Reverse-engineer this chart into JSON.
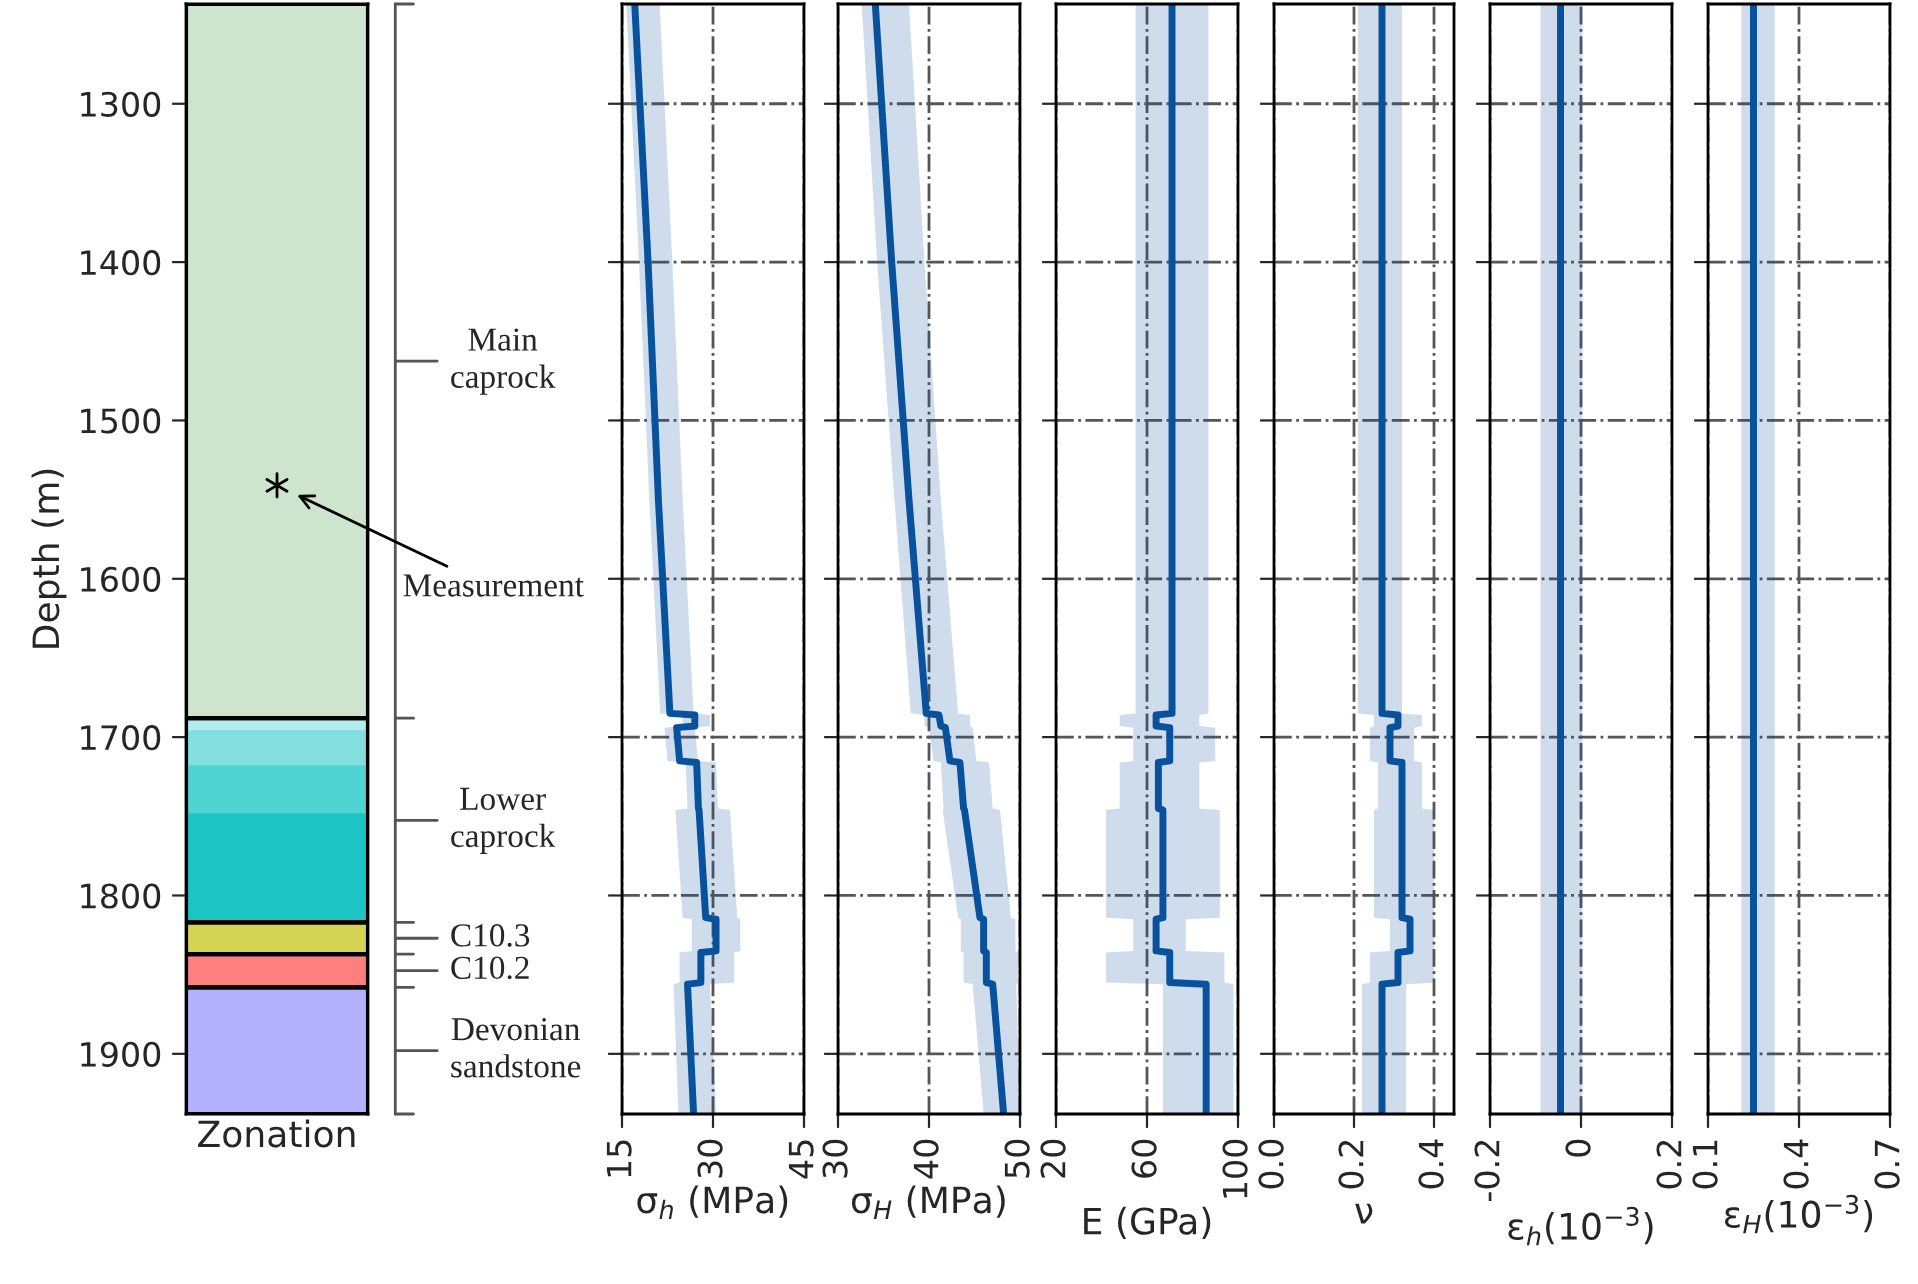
{
  "chart_data": [
    {
      "type": "scatter",
      "categories": [
        null
      ],
      "marker": "cross",
      "series": [
        {
          "color": "#000000",
          "values": [
            1541
          ]
        }
      ],
      "xlabel": "Zonation",
      "ylabel": "Depth (m)",
      "ylim": [
        1938,
        1237
      ],
      "yticks": [
        1300,
        1400,
        1500,
        1600,
        1700,
        1800,
        1900
      ],
      "tick_labels": "y",
      "bands": [
        {
          "axis": "y",
          "from": 1237,
          "to": 1688,
          "color": "#cce5cc",
          "label": "Main\ncaprock"
        },
        {
          "axis": "y",
          "from": 1688,
          "to": 1817,
          "color": "#1cc4c4",
          "label": "Lower\ncaprock"
        },
        {
          "axis": "y",
          "from": 1688,
          "to": 1696,
          "color": "#b3eded"
        },
        {
          "axis": "y",
          "from": 1696,
          "to": 1718,
          "color": "#83dfdf"
        },
        {
          "axis": "y",
          "from": 1718,
          "to": 1748,
          "color": "#4fd3d3"
        },
        {
          "axis": "y",
          "from": 1817,
          "to": 1837,
          "color": "#d4d452",
          "label": "C10.3"
        },
        {
          "axis": "y",
          "from": 1837,
          "to": 1858,
          "color": "#ff7f7f",
          "label": "C10.2"
        },
        {
          "axis": "y",
          "from": 1858,
          "to": 1938,
          "color": "#b2b2ff",
          "label": "Devonian\nsandstone"
        }
      ],
      "annotations": [
        "Measurement"
      ]
    },
    {
      "type": "line",
      "orientation": "horizontal",
      "x": [
        1237,
        1400,
        1550,
        1685,
        1686,
        1693,
        1694,
        1715,
        1716,
        1745,
        1746,
        1814,
        1815,
        1835,
        1836,
        1855,
        1856,
        1938
      ],
      "xlabel": "σ$_{h}$ (MPa)",
      "xlim": [
        15,
        45
      ],
      "xticks": [
        15,
        30,
        45
      ],
      "ylim": [
        1938,
        1237
      ],
      "yticks": [
        1300,
        1400,
        1500,
        1600,
        1700,
        1800,
        1900
      ],
      "grid": true,
      "tick_labels": "x",
      "series": [
        {
          "color": "#08519c",
          "values": [
            17.1,
            19.3,
            21.0,
            22.9,
            27.0,
            27.0,
            24.0,
            24.5,
            27.3,
            27.6,
            27.7,
            28.8,
            30.5,
            30.5,
            28.0,
            28.0,
            25.8,
            26.8
          ],
          "lower": [
            15.7,
            17.8,
            19.5,
            21.3,
            25.0,
            25.0,
            22.0,
            22.5,
            25.5,
            25.8,
            23.8,
            25.0,
            26.5,
            26.5,
            24.5,
            24.5,
            23.5,
            24.3
          ],
          "upper": [
            21.2,
            23.3,
            25.0,
            26.8,
            29.5,
            29.5,
            27.0,
            27.5,
            30.5,
            30.8,
            32.8,
            34.0,
            34.5,
            34.5,
            33.5,
            33.5,
            29.5,
            30.5
          ]
        }
      ]
    },
    {
      "type": "line",
      "orientation": "horizontal",
      "x": [
        1237,
        1400,
        1550,
        1685,
        1686,
        1693,
        1694,
        1715,
        1716,
        1745,
        1746,
        1814,
        1815,
        1835,
        1836,
        1855,
        1856,
        1938
      ],
      "xlabel": "σ$_{H}$ (MPa)",
      "xlim": [
        30,
        50
      ],
      "xticks": [
        30,
        40,
        50
      ],
      "ylim": [
        1938,
        1237
      ],
      "yticks": [
        1300,
        1400,
        1500,
        1600,
        1700,
        1800,
        1900
      ],
      "grid": true,
      "tick_labels": "x",
      "series": [
        {
          "color": "#08519c",
          "values": [
            34.1,
            35.9,
            37.8,
            39.7,
            41.1,
            41.3,
            41.8,
            42.3,
            43.4,
            43.8,
            43.9,
            45.6,
            46.0,
            46.0,
            46.3,
            46.3,
            47.0,
            48.2
          ],
          "lower": [
            32.6,
            34.3,
            36.2,
            38.0,
            39.5,
            39.5,
            40.0,
            40.5,
            41.3,
            41.6,
            41.5,
            43.2,
            43.5,
            43.5,
            43.8,
            43.8,
            44.8,
            46.0
          ],
          "upper": [
            37.8,
            39.5,
            41.3,
            43.2,
            44.5,
            44.5,
            44.8,
            45.2,
            46.6,
            47.0,
            47.8,
            49.0,
            49.5,
            49.5,
            49.8,
            49.8,
            49.6,
            50.0
          ]
        }
      ]
    },
    {
      "type": "line",
      "orientation": "horizontal",
      "x": [
        1237,
        1400,
        1550,
        1685,
        1686,
        1693,
        1694,
        1715,
        1716,
        1745,
        1746,
        1814,
        1815,
        1835,
        1836,
        1855,
        1856,
        1938
      ],
      "xlabel": "E (GPa)",
      "xlim": [
        20,
        100
      ],
      "xticks": [
        20,
        60,
        100
      ],
      "ylim": [
        1938,
        1237
      ],
      "yticks": [
        1300,
        1400,
        1500,
        1600,
        1700,
        1800,
        1900
      ],
      "grid": true,
      "tick_labels": "x",
      "series": [
        {
          "color": "#08519c",
          "values": [
            71,
            71,
            71,
            71,
            64,
            64,
            70,
            70,
            65,
            65,
            67,
            67,
            64,
            64,
            70,
            70,
            86,
            86
          ],
          "lower": [
            55,
            55,
            55,
            55,
            48,
            48,
            54,
            54,
            48,
            48,
            42,
            42,
            54,
            54,
            42,
            42,
            67,
            67
          ],
          "upper": [
            87,
            87,
            87,
            87,
            83,
            83,
            90,
            90,
            83,
            83,
            92,
            92,
            77,
            77,
            94,
            94,
            98,
            98
          ]
        }
      ]
    },
    {
      "type": "line",
      "orientation": "horizontal",
      "x": [
        1237,
        1400,
        1550,
        1685,
        1686,
        1693,
        1694,
        1715,
        1716,
        1745,
        1746,
        1814,
        1815,
        1835,
        1836,
        1855,
        1856,
        1938
      ],
      "xlabel": "ν",
      "xlim": [
        0,
        0.45
      ],
      "xticks": [
        {
          "value": 0,
          "label": "0.0"
        },
        0.2,
        0.4
      ],
      "ylim": [
        1938,
        1237
      ],
      "yticks": [
        1300,
        1400,
        1500,
        1600,
        1700,
        1800,
        1900
      ],
      "grid": true,
      "tick_labels": "x",
      "series": [
        {
          "color": "#08519c",
          "values": [
            0.27,
            0.27,
            0.27,
            0.27,
            0.31,
            0.31,
            0.29,
            0.29,
            0.32,
            0.32,
            0.32,
            0.32,
            0.34,
            0.34,
            0.31,
            0.31,
            0.27,
            0.27
          ],
          "lower": [
            0.21,
            0.21,
            0.21,
            0.21,
            0.25,
            0.25,
            0.24,
            0.24,
            0.26,
            0.26,
            0.25,
            0.25,
            0.29,
            0.29,
            0.24,
            0.24,
            0.22,
            0.22
          ],
          "upper": [
            0.32,
            0.32,
            0.32,
            0.32,
            0.37,
            0.37,
            0.35,
            0.35,
            0.37,
            0.37,
            0.4,
            0.4,
            0.4,
            0.4,
            0.4,
            0.4,
            0.33,
            0.33
          ]
        }
      ]
    },
    {
      "type": "line",
      "orientation": "horizontal",
      "x": [
        1237,
        1400,
        1600,
        1800,
        1938
      ],
      "xlabel": "ε$_{h}$(10$^{−3}$)",
      "xlim": [
        -0.2,
        0.2
      ],
      "xticks": [
        {
          "value": -0.2,
          "label": "-0.2"
        },
        0,
        0.2
      ],
      "ylim": [
        1938,
        1237
      ],
      "yticks": [
        1300,
        1400,
        1500,
        1600,
        1700,
        1800,
        1900
      ],
      "grid": true,
      "tick_labels": "x",
      "series": [
        {
          "color": "#08519c",
          "values": [
            -0.045,
            -0.045,
            -0.045,
            -0.045,
            -0.045
          ],
          "lower": [
            -0.089,
            -0.089,
            -0.089,
            -0.089,
            -0.089
          ],
          "upper": [
            0.003,
            0.003,
            0.003,
            0.003,
            0.003
          ]
        }
      ]
    },
    {
      "type": "line",
      "orientation": "horizontal",
      "x": [
        1237,
        1400,
        1600,
        1800,
        1938
      ],
      "xlabel": "ε$_{H}$(10$^{−3}$)",
      "xlim": [
        0.1,
        0.7
      ],
      "xticks": [
        0.1,
        0.4,
        0.7
      ],
      "ylim": [
        1938,
        1237
      ],
      "yticks": [
        1300,
        1400,
        1500,
        1600,
        1700,
        1800,
        1900
      ],
      "grid": true,
      "tick_labels": "x",
      "series": [
        {
          "color": "#08519c",
          "values": [
            0.25,
            0.25,
            0.25,
            0.25,
            0.25
          ],
          "lower": [
            0.21,
            0.21,
            0.21,
            0.21,
            0.21
          ],
          "upper": [
            0.32,
            0.32,
            0.32,
            0.32,
            0.32
          ]
        }
      ]
    }
  ]
}
